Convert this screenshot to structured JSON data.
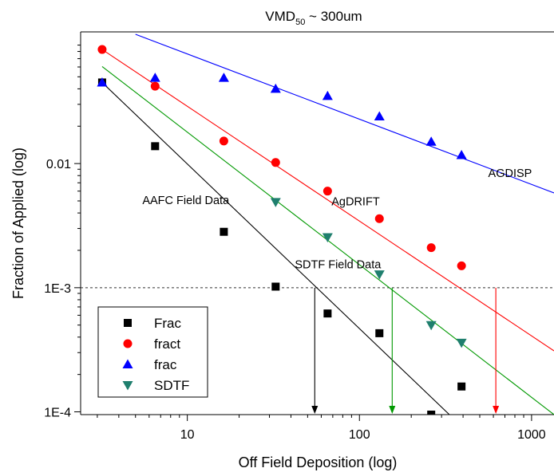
{
  "chart_data": {
    "type": "scatter",
    "title_main": "VMD",
    "title_sub": "50",
    "title_rest": " ~ 300um",
    "xlabel": "Off Field Deposition (log)",
    "ylabel": "Fraction of Applied (log)",
    "x_scale": "log",
    "y_scale": "log",
    "xlim": [
      2.4,
      1350
    ],
    "ylim": [
      9.5e-05,
      0.115
    ],
    "x_ticks": [
      10,
      100,
      1000
    ],
    "x_tick_labels": [
      "10",
      "100",
      "1000"
    ],
    "y_ticks": [
      0.0001,
      0.001,
      0.01
    ],
    "y_tick_labels": [
      "1E-4",
      "1E-3",
      "0.01"
    ],
    "grid": false,
    "legend_position": "bottom-left",
    "series": [
      {
        "name": "Frac",
        "marker": "square",
        "color": "#000000",
        "x": [
          3.2,
          6.5,
          16.3,
          32.6,
          65.3,
          130.6,
          261.2,
          391.8
        ],
        "y": [
          0.045,
          0.0138,
          0.00282,
          0.00102,
          0.00062,
          0.00043,
          9.5e-05,
          0.00016
        ]
      },
      {
        "name": "fract",
        "marker": "circle",
        "color": "#ff0000",
        "x": [
          3.2,
          6.5,
          16.3,
          32.6,
          65.3,
          130.6,
          261.2,
          391.8
        ],
        "y": [
          0.083,
          0.042,
          0.0152,
          0.0102,
          0.006,
          0.0036,
          0.0021,
          0.0015
        ]
      },
      {
        "name": "frac",
        "marker": "triangle-up",
        "color": "#0000ff",
        "x": [
          3.2,
          6.5,
          16.3,
          32.6,
          65.3,
          130.6,
          261.2,
          391.8
        ],
        "y": [
          0.045,
          0.049,
          0.049,
          0.04,
          0.035,
          0.024,
          0.015,
          0.0117
        ]
      },
      {
        "name": "SDTF",
        "marker": "triangle-down",
        "color": "#1f7f6e",
        "x": [
          32.6,
          65.3,
          130.6,
          261.2,
          391.8
        ],
        "y": [
          0.0049,
          0.00255,
          0.00128,
          0.0005,
          0.00036
        ]
      }
    ],
    "fit_lines": [
      {
        "label": "AGDISP",
        "color": "#0000ff",
        "x": [
          5.0,
          1350
        ],
        "y": [
          0.11,
          0.0058
        ]
      },
      {
        "label": "AgDRIFT",
        "color": "#ff0000",
        "x": [
          3.2,
          1350
        ],
        "y": [
          0.083,
          0.00031
        ]
      },
      {
        "label": "SDTF Field Data",
        "color": "#009900",
        "x": [
          3.2,
          1350
        ],
        "y": [
          0.0605,
          9.5e-05
        ]
      },
      {
        "label": "AAFC Field Data",
        "color": "#000000",
        "x": [
          3.2,
          333
        ],
        "y": [
          0.045,
          9.5e-05
        ]
      }
    ],
    "threshold": {
      "y": 0.001,
      "style": "dashed"
    },
    "drop_arrows": [
      {
        "x": 55,
        "color": "#000000"
      },
      {
        "x": 155,
        "color": "#009900"
      },
      {
        "x": 620,
        "color": "#ff0000"
      }
    ],
    "annotations": [
      {
        "text": "AGDISP",
        "x": 750,
        "y": 0.0078
      },
      {
        "text": "AgDRIFT",
        "x": 95,
        "y": 0.0046
      },
      {
        "text": "AAFC Field Data",
        "x": 9.8,
        "y": 0.0047
      },
      {
        "text": "SDTF Field Data",
        "x": 75,
        "y": 0.00143
      }
    ]
  }
}
